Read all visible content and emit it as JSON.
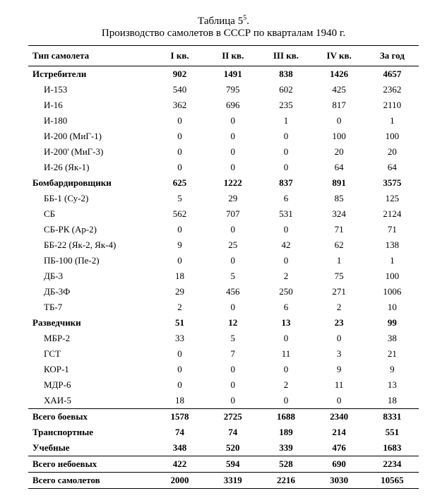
{
  "title": {
    "label_main": "Таблица 5",
    "label_sup": "5",
    "label_suffix": ".",
    "caption": "Производство самолетов в СССР по кварталам 1940 г."
  },
  "columns": [
    "Тип самолета",
    "I кв.",
    "II кв.",
    "III кв.",
    "IV кв.",
    "За год"
  ],
  "rows": [
    {
      "cells": [
        "Истребители",
        "902",
        "1491",
        "838",
        "1426",
        "4657"
      ],
      "bold": true
    },
    {
      "cells": [
        "И-153",
        "540",
        "795",
        "602",
        "425",
        "2362"
      ],
      "indent": true
    },
    {
      "cells": [
        "И-16",
        "362",
        "696",
        "235",
        "817",
        "2110"
      ],
      "indent": true
    },
    {
      "cells": [
        "И-180",
        "0",
        "0",
        "1",
        "0",
        "1"
      ],
      "indent": true
    },
    {
      "cells": [
        "И-200 (МиГ-1)",
        "0",
        "0",
        "0",
        "100",
        "100"
      ],
      "indent": true
    },
    {
      "cells": [
        "И-200' (МиГ-3)",
        "0",
        "0",
        "0",
        "20",
        "20"
      ],
      "indent": true
    },
    {
      "cells": [
        "И-26 (Як-1)",
        "0",
        "0",
        "0",
        "64",
        "64"
      ],
      "indent": true
    },
    {
      "cells": [
        "Бомбардировщики",
        "625",
        "1222",
        "837",
        "891",
        "3575"
      ],
      "bold": true
    },
    {
      "cells": [
        "ББ-1 (Су-2)",
        "5",
        "29",
        "6",
        "85",
        "125"
      ],
      "indent": true
    },
    {
      "cells": [
        "СБ",
        "562",
        "707",
        "531",
        "324",
        "2124"
      ],
      "indent": true
    },
    {
      "cells": [
        "СБ-РК (Ар-2)",
        "0",
        "0",
        "0",
        "71",
        "71"
      ],
      "indent": true
    },
    {
      "cells": [
        "ББ-22 (Як-2, Як-4)",
        "9",
        "25",
        "42",
        "62",
        "138"
      ],
      "indent": true
    },
    {
      "cells": [
        "ПБ-100 (Пе-2)",
        "0",
        "0",
        "0",
        "1",
        "1"
      ],
      "indent": true
    },
    {
      "cells": [
        "ДБ-3",
        "18",
        "5",
        "2",
        "75",
        "100"
      ],
      "indent": true
    },
    {
      "cells": [
        "ДБ-3Ф",
        "29",
        "456",
        "250",
        "271",
        "1006"
      ],
      "indent": true
    },
    {
      "cells": [
        "ТБ-7",
        "2",
        "0",
        "6",
        "2",
        "10"
      ],
      "indent": true
    },
    {
      "cells": [
        "Разведчики",
        "51",
        "12",
        "13",
        "23",
        "99"
      ],
      "bold": true
    },
    {
      "cells": [
        "МБР-2",
        "33",
        "5",
        "0",
        "0",
        "38"
      ],
      "indent": true
    },
    {
      "cells": [
        "ГСТ",
        "0",
        "7",
        "11",
        "3",
        "21"
      ],
      "indent": true
    },
    {
      "cells": [
        "КОР-1",
        "0",
        "0",
        "0",
        "9",
        "9"
      ],
      "indent": true
    },
    {
      "cells": [
        "МДР-6",
        "0",
        "0",
        "2",
        "11",
        "13"
      ],
      "indent": true
    },
    {
      "cells": [
        "ХАИ-5",
        "18",
        "0",
        "0",
        "0",
        "18"
      ],
      "indent": true
    },
    {
      "cells": [
        "Всего боевых",
        "1578",
        "2725",
        "1688",
        "2340",
        "8331"
      ],
      "bold": true,
      "rule_above": true
    },
    {
      "cells": [
        "Транспортные",
        "74",
        "74",
        "189",
        "214",
        "551"
      ],
      "bold": true
    },
    {
      "cells": [
        "Учебные",
        "348",
        "520",
        "339",
        "476",
        "1683"
      ],
      "bold": true
    },
    {
      "cells": [
        "Всего небоевых",
        "422",
        "594",
        "528",
        "690",
        "2234"
      ],
      "bold": true,
      "rule_above": true
    },
    {
      "cells": [
        "Всего самолетов",
        "2000",
        "3319",
        "2216",
        "3030",
        "10565"
      ],
      "bold": true,
      "rule_above": true,
      "rule_below": true
    }
  ]
}
